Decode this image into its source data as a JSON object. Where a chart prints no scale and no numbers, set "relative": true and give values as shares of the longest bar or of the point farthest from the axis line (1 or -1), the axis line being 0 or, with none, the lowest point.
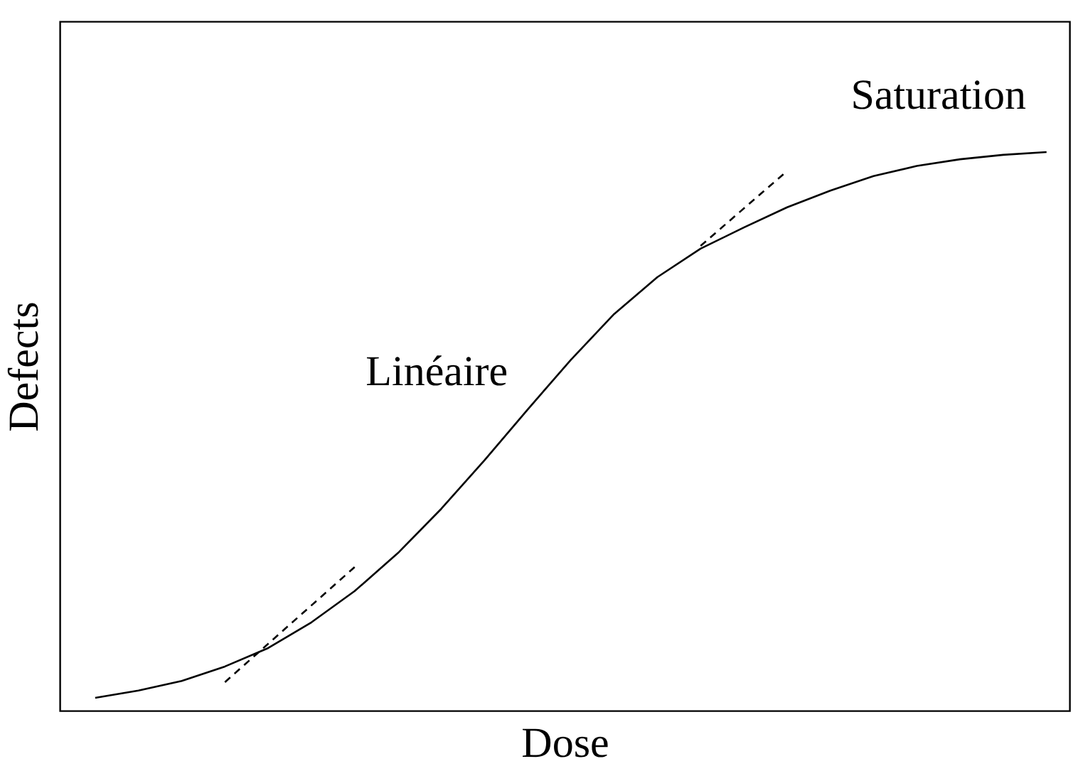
{
  "chart_data": {
    "type": "line",
    "relative": true,
    "xlabel": "Dose",
    "ylabel": "Defects",
    "marker": "none",
    "tick_labels": false,
    "grid": false,
    "categories": [
      null,
      null,
      null,
      null,
      null,
      null,
      null,
      null,
      null,
      null,
      null,
      null,
      null,
      null,
      null,
      null,
      null,
      null,
      null,
      null,
      null,
      null,
      null
    ],
    "series": [
      {
        "color": "#000000",
        "line_style": "solid",
        "values": [
          0.023,
          0.036,
          0.053,
          0.079,
          0.112,
          0.158,
          0.214,
          0.282,
          0.361,
          0.448,
          0.539,
          0.628,
          0.71,
          0.776,
          0.827,
          0.865,
          0.901,
          0.931,
          0.957,
          0.975,
          0.987,
          0.995,
          1
        ]
      },
      {
        "color": "#000000",
        "line_style": "dashed",
        "values": [
          null,
          null,
          null,
          0.051,
          null,
          null,
          0.257,
          null,
          null,
          null,
          null,
          null,
          null,
          null,
          null,
          null,
          null,
          null,
          null,
          null,
          null,
          null,
          null
        ]
      },
      {
        "color": "#000000",
        "line_style": "dashed",
        "values": [
          null,
          null,
          null,
          null,
          null,
          null,
          null,
          null,
          null,
          null,
          null,
          null,
          null,
          null,
          0.832,
          null,
          0.966,
          null,
          null,
          null,
          null,
          null,
          null
        ]
      }
    ],
    "annotations": [
      "Linéaire",
      "Saturation"
    ]
  }
}
